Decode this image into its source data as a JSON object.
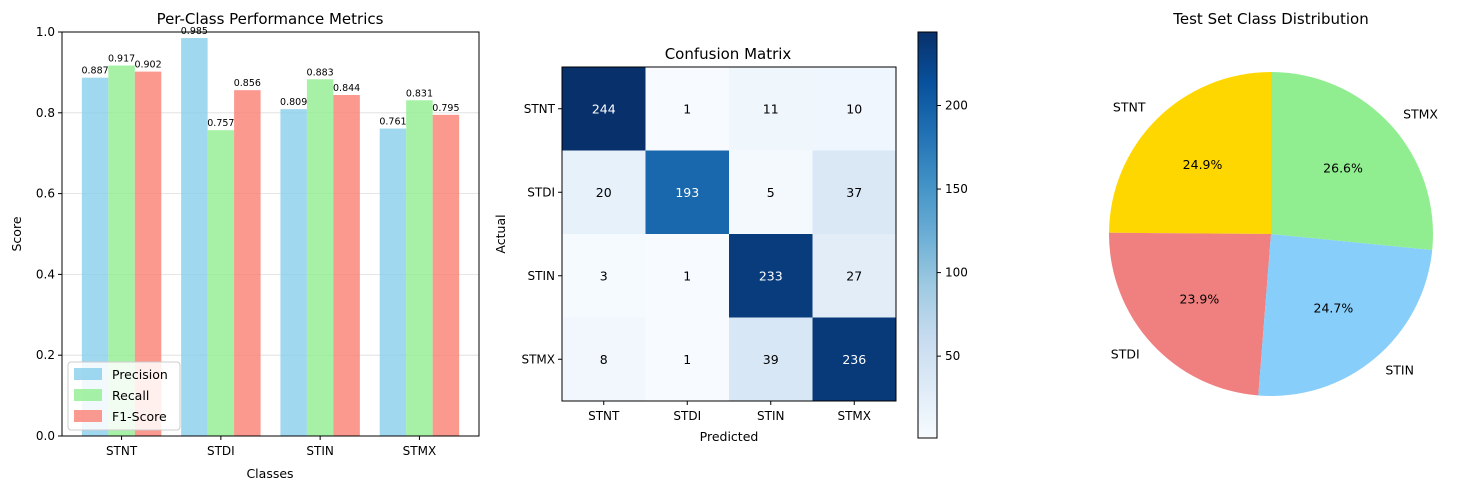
{
  "chart_data": [
    {
      "type": "bar",
      "title": "Per-Class Performance Metrics",
      "xlabel": "Classes",
      "ylabel": "Score",
      "categories": [
        "STNT",
        "STDI",
        "STIN",
        "STMX"
      ],
      "ylim": [
        0,
        1.0
      ],
      "yticks": [
        "0.0",
        "0.2",
        "0.4",
        "0.6",
        "0.8",
        "1.0"
      ],
      "grid": true,
      "legend_position": "lower-left",
      "series": [
        {
          "name": "Precision",
          "values": [
            0.887,
            0.985,
            0.809,
            0.761
          ],
          "labels": [
            "0.887",
            "0.985",
            "0.809",
            "0.761"
          ],
          "color": "#87ceeb"
        },
        {
          "name": "Recall",
          "values": [
            0.917,
            0.757,
            0.883,
            0.831
          ],
          "labels": [
            "0.917",
            "0.757",
            "0.883",
            "0.831"
          ],
          "color": "#90ee90"
        },
        {
          "name": "F1-Score",
          "values": [
            0.902,
            0.856,
            0.844,
            0.795
          ],
          "labels": [
            "0.902",
            "0.856",
            "0.844",
            "0.795"
          ],
          "color": "#fa8072"
        }
      ]
    },
    {
      "type": "heatmap",
      "title": "Confusion Matrix",
      "xlabel": "Predicted",
      "ylabel": "Actual",
      "x_categories": [
        "STNT",
        "STDI",
        "STIN",
        "STMX"
      ],
      "y_categories": [
        "STNT",
        "STDI",
        "STIN",
        "STMX"
      ],
      "matrix": [
        [
          244,
          1,
          11,
          10
        ],
        [
          20,
          193,
          5,
          37
        ],
        [
          3,
          1,
          233,
          27
        ],
        [
          8,
          1,
          39,
          236
        ]
      ],
      "colormap": "Blues",
      "colorbar_range": [
        1,
        244
      ],
      "colorbar_ticks": [
        50,
        100,
        150,
        200
      ]
    },
    {
      "type": "pie",
      "title": "Test Set Class Distribution",
      "labels": [
        "STNT",
        "STDI",
        "STIN",
        "STMX"
      ],
      "values": [
        24.9,
        23.9,
        24.7,
        26.6
      ],
      "percent_labels": [
        "24.9%",
        "23.9%",
        "24.7%",
        "26.6%"
      ],
      "colors": [
        "#ffd700",
        "#f08080",
        "#87cefa",
        "#90ee90"
      ],
      "start_angle": 90
    }
  ]
}
